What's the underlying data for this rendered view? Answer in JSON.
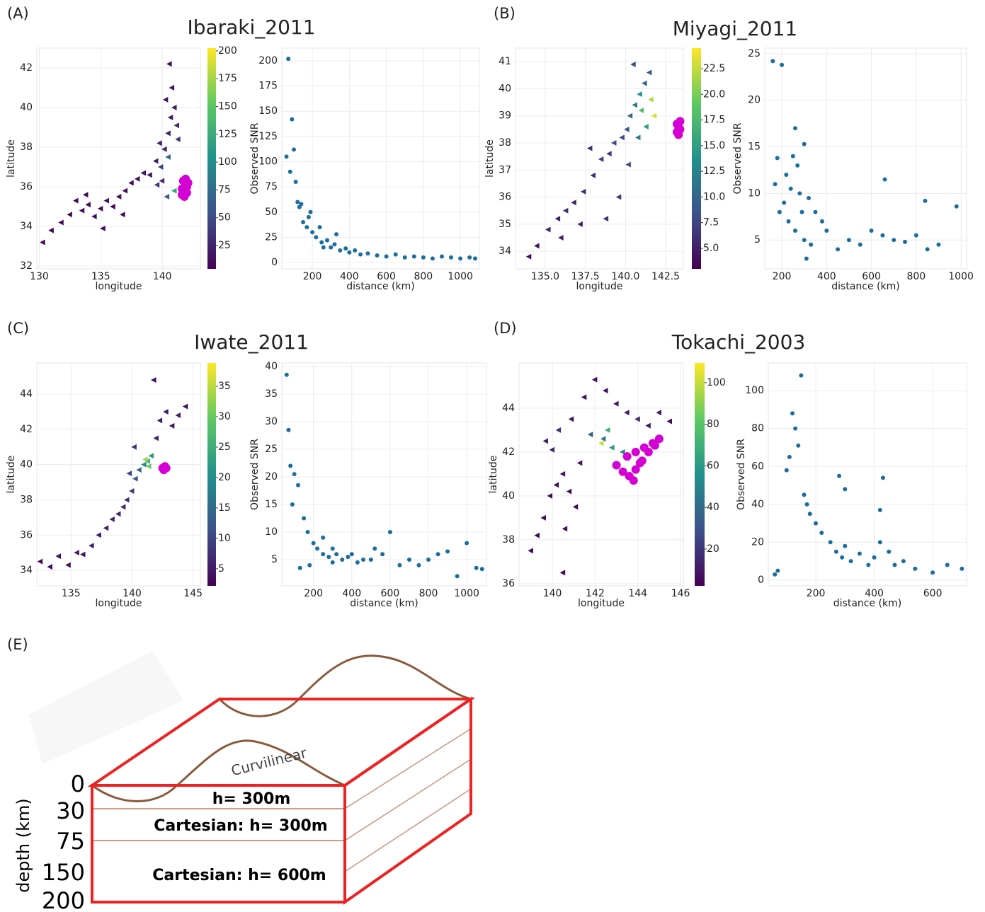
{
  "chart_data": [
    {
      "type": "map",
      "panel": "(A)",
      "title": "Ibaraki_2011",
      "xlabel": "longitude",
      "ylabel": "latitude",
      "grid": true,
      "xlim": [
        129.8,
        143.1
      ],
      "xticks": [
        130,
        135,
        140
      ],
      "ylim": [
        31.86,
        43
      ],
      "yticks": [
        32,
        34,
        36,
        38,
        40,
        42
      ],
      "stations": {
        "marker": "triangle",
        "x": [
          130.3,
          131,
          131.8,
          132.5,
          133,
          133.5,
          134,
          134.5,
          135,
          135.5,
          136,
          136.5,
          137,
          137.5,
          138,
          138.5,
          139,
          139.5,
          139.8,
          140,
          140.2,
          140.5,
          140.7,
          141,
          140.8,
          140.3,
          141.2,
          140.6,
          141,
          140.4,
          139.6,
          139.9,
          140.5,
          141.3,
          136.8,
          135.2,
          133.8
        ],
        "y": [
          33.2,
          33.8,
          34.2,
          34.6,
          35.3,
          34.8,
          35.1,
          34.5,
          34.9,
          35.3,
          35,
          35.5,
          35.8,
          36.2,
          36.4,
          36.7,
          36.6,
          37.3,
          38.2,
          36.3,
          37.9,
          38.7,
          39.5,
          40,
          41,
          40.4,
          39.1,
          42.2,
          35.8,
          35.5,
          36.1,
          37.0,
          37.5,
          38.4,
          34.6,
          33.9,
          35.6
        ],
        "snr": [
          8,
          7,
          9,
          10,
          8,
          9,
          10,
          12,
          9,
          11,
          10,
          12,
          14,
          13,
          15,
          16,
          18,
          20,
          22,
          30,
          25,
          24,
          20,
          18,
          12,
          15,
          28,
          10,
          120,
          60,
          40,
          45,
          70,
          35,
          12,
          11,
          9
        ]
      },
      "source": {
        "color": "#d400d4",
        "x": [
          141.6,
          141.8,
          142,
          142.1,
          141.7,
          141.9,
          142,
          141.8,
          141.6,
          141.9
        ],
        "y": [
          35.6,
          35.8,
          36,
          36.2,
          36.3,
          36.1,
          35.7,
          35.5,
          35.9,
          36.4
        ]
      },
      "colorbar": {
        "colormap": "viridis",
        "lim": [
          4,
          202.5
        ],
        "ticks": [
          25,
          50,
          75,
          100,
          125,
          150,
          175,
          200
        ]
      }
    },
    {
      "type": "scatter",
      "xlabel": "distance (km)",
      "ylabel": "Observed SNR",
      "grid": true,
      "color": "#1b6d9e",
      "xlim": [
        35,
        1103
      ],
      "xticks": [
        200,
        400,
        600,
        800,
        1000
      ],
      "ylim": [
        -6.3,
        212.6
      ],
      "yticks": [
        0,
        25,
        50,
        75,
        100,
        125,
        150,
        175,
        200
      ],
      "x": [
        70,
        90,
        100,
        60,
        80,
        110,
        120,
        130,
        150,
        170,
        180,
        200,
        220,
        250,
        280,
        300,
        320,
        350,
        380,
        400,
        430,
        460,
        500,
        550,
        600,
        650,
        700,
        750,
        800,
        850,
        900,
        950,
        1000,
        1050,
        1080,
        140,
        240,
        330,
        260,
        190
      ],
      "y": [
        202,
        142,
        112,
        105,
        90,
        80,
        60,
        55,
        40,
        35,
        45,
        30,
        25,
        20,
        22,
        15,
        18,
        12,
        14,
        10,
        12,
        8,
        9,
        7,
        6,
        8,
        5,
        6,
        5,
        4,
        6,
        5,
        4,
        5,
        4,
        58,
        35,
        28,
        15,
        50
      ]
    },
    {
      "type": "map",
      "panel": "(B)",
      "title": "Miyagi_2011",
      "xlabel": "longitude",
      "ylabel": "latitude",
      "grid": true,
      "xlim": [
        133.15,
        143.6
      ],
      "xticks": [
        {
          "value": 135,
          "label": "135.0"
        },
        {
          "value": 137.5,
          "label": "137.5"
        },
        {
          "value": 140,
          "label": "140.0"
        },
        {
          "value": 142.5,
          "label": "142.5"
        }
      ],
      "ylim": [
        33.35,
        41.5
      ],
      "yticks": [
        34,
        35,
        36,
        37,
        38,
        39,
        40,
        41
      ],
      "stations": {
        "marker": "triangle",
        "x": [
          134,
          134.5,
          135.2,
          135.8,
          136.3,
          136.8,
          137.4,
          138,
          138.5,
          139,
          139.3,
          139.8,
          140.1,
          140.3,
          140.6,
          140.9,
          141.2,
          141.5,
          140.5,
          141,
          141.3,
          140.8,
          141.6,
          141.8,
          140.2,
          139.6,
          138.8,
          137.2,
          136,
          137.8
        ],
        "y": [
          33.8,
          34.2,
          34.8,
          35.2,
          35.5,
          35.8,
          36.2,
          36.8,
          37.4,
          37.6,
          38,
          38.2,
          38.5,
          39,
          39.4,
          39.8,
          40.2,
          40.6,
          40.9,
          39.2,
          38.6,
          38.2,
          39.6,
          39.0,
          37.2,
          36,
          35.2,
          35,
          34.5,
          37.8
        ],
        "snr": [
          4,
          4,
          5,
          5,
          6,
          5,
          6,
          6,
          7,
          7,
          8,
          8,
          9,
          10,
          12,
          14,
          10,
          9,
          8,
          18,
          15,
          12,
          22,
          23,
          8,
          7,
          6,
          5,
          5,
          6
        ]
      },
      "source": {
        "color": "#d400d4",
        "x": [
          143.2,
          143.3,
          143.4,
          143.3,
          143.2,
          143.4
        ],
        "y": [
          38.4,
          38.6,
          38.8,
          38.3,
          38.7,
          38.5
        ]
      },
      "colorbar": {
        "colormap": "viridis",
        "lim": [
          3.0,
          24.5
        ],
        "ticks": [
          {
            "value": 5,
            "label": "5.0"
          },
          {
            "value": 7.5,
            "label": "7.5"
          },
          {
            "value": 10,
            "label": "10.0"
          },
          {
            "value": 12.5,
            "label": "12.5"
          },
          {
            "value": 15,
            "label": "15.0"
          },
          {
            "value": 17.5,
            "label": "17.5"
          },
          {
            "value": 20,
            "label": "20.0"
          },
          {
            "value": 22.5,
            "label": "22.5"
          }
        ]
      }
    },
    {
      "type": "scatter",
      "xlabel": "distance (km)",
      "ylabel": "Observed SNR",
      "grid": true,
      "color": "#1b6d9e",
      "xlim": [
        124,
        1025
      ],
      "xticks": [
        200,
        400,
        600,
        800,
        1000
      ],
      "ylim": [
        1.9,
        25.6
      ],
      "yticks": [
        5,
        10,
        15,
        20,
        25
      ],
      "x": [
        160,
        200,
        260,
        300,
        180,
        220,
        240,
        280,
        320,
        350,
        380,
        400,
        250,
        270,
        210,
        190,
        230,
        260,
        300,
        330,
        450,
        500,
        550,
        600,
        650,
        700,
        750,
        800,
        850,
        900,
        980,
        660,
        840,
        170,
        290,
        310
      ],
      "y": [
        24.2,
        23.8,
        17,
        15.3,
        13.8,
        12,
        10.5,
        10,
        9.5,
        8,
        7,
        6,
        14,
        13,
        9,
        8,
        7,
        6,
        5,
        4.5,
        4,
        5,
        4.5,
        6,
        5.5,
        5,
        4.8,
        5.5,
        4,
        4.5,
        8.6,
        11.5,
        9.2,
        11,
        8,
        3
      ]
    },
    {
      "type": "map",
      "panel": "(C)",
      "title": "Iwate_2011",
      "xlabel": "longitude",
      "ylabel": "latitude",
      "grid": true,
      "xlim": [
        132.2,
        145.6
      ],
      "xticks": [
        135,
        140,
        145
      ],
      "ylim": [
        33.12,
        45.77
      ],
      "yticks": [
        34,
        36,
        38,
        40,
        42,
        44
      ],
      "stations": {
        "marker": "triangle",
        "x": [
          132.5,
          133.3,
          134,
          134.8,
          135.5,
          136,
          136.7,
          137.3,
          137.9,
          138.4,
          138.9,
          139.3,
          139.6,
          140,
          140.3,
          140.6,
          141,
          141.3,
          141.6,
          142,
          142.3,
          142.8,
          143.3,
          143.8,
          144.4,
          141.8,
          140.2,
          139.8,
          141.4,
          141.1
        ],
        "y": [
          34.5,
          34.2,
          34.8,
          34.3,
          35,
          34.9,
          35.4,
          36,
          36.4,
          36.9,
          37.2,
          37.6,
          38,
          38.5,
          39.2,
          39.7,
          40,
          40.2,
          40.5,
          41.5,
          42.5,
          43,
          42.2,
          42.8,
          43.3,
          44.8,
          41,
          39.5,
          39.9,
          40.3
        ],
        "snr": [
          3,
          3,
          4,
          4,
          5,
          4,
          5,
          5,
          6,
          6,
          7,
          7,
          8,
          9,
          12,
          15,
          20,
          25,
          22,
          6,
          5,
          5,
          4,
          5,
          4,
          4,
          8,
          10,
          30,
          34
        ]
      },
      "source": {
        "color": "#d400d4",
        "x": [
          142.5,
          142.7,
          142.8,
          142.6
        ],
        "y": [
          39.8,
          39.9,
          39.8,
          39.7
        ]
      },
      "colorbar": {
        "colormap": "viridis",
        "lim": [
          2.2,
          38.84
        ],
        "ticks": [
          5,
          10,
          15,
          20,
          25,
          30,
          35
        ]
      }
    },
    {
      "type": "scatter",
      "xlabel": "distance (km)",
      "ylabel": "Observed SNR",
      "grid": true,
      "color": "#1b6d9e",
      "xlim": [
        35,
        1103
      ],
      "xticks": [
        200,
        400,
        600,
        800,
        1000
      ],
      "ylim": [
        0.26,
        40.64
      ],
      "yticks": [
        5,
        10,
        15,
        20,
        25,
        30,
        35,
        40
      ],
      "x": [
        60,
        70,
        80,
        100,
        90,
        120,
        150,
        170,
        200,
        220,
        250,
        280,
        300,
        320,
        350,
        380,
        400,
        430,
        460,
        500,
        520,
        560,
        600,
        650,
        700,
        750,
        800,
        850,
        900,
        950,
        1000,
        1050,
        1080,
        130,
        180,
        250,
        300
      ],
      "y": [
        38.5,
        28.5,
        22,
        20.5,
        15,
        18.5,
        12.5,
        10,
        8,
        7,
        6,
        5.5,
        7,
        6,
        5,
        5.5,
        6,
        4.5,
        5,
        5,
        7,
        6,
        10,
        4,
        5,
        4,
        5,
        6,
        6.5,
        2,
        8,
        3.5,
        3.3,
        3.5,
        4,
        9,
        4.5
      ]
    },
    {
      "type": "map",
      "panel": "(D)",
      "title": "Tokachi_2003",
      "xlabel": "longitude",
      "ylabel": "latitude",
      "grid": true,
      "xlim": [
        138.44,
        146.13
      ],
      "xticks": [
        140,
        142,
        144,
        146
      ],
      "ylim": [
        35.9,
        46.06
      ],
      "yticks": [
        36,
        38,
        40,
        42,
        44
      ],
      "stations": {
        "marker": "triangle",
        "x": [
          139,
          139.3,
          139.6,
          139.9,
          140.2,
          140.5,
          140.8,
          141.1,
          141.3,
          140.6,
          140,
          139.7,
          140.3,
          140.9,
          141.5,
          142,
          142.5,
          143,
          143.5,
          144,
          144.5,
          145,
          145.5,
          141.8,
          142.3,
          142.8,
          143.3,
          142.6,
          142.4,
          140.5
        ],
        "y": [
          37.5,
          38.2,
          39,
          40,
          40.5,
          41,
          40.2,
          39.5,
          41.5,
          38.5,
          42.1,
          42.5,
          43,
          43.5,
          44.5,
          45.3,
          44.8,
          44.2,
          43.8,
          43.5,
          43.2,
          43.8,
          43.4,
          42.8,
          42.4,
          42.2,
          42.0,
          43.0,
          42.6,
          36.5
        ],
        "snr": [
          5,
          5,
          6,
          6,
          7,
          8,
          7,
          6,
          8,
          6,
          15,
          12,
          20,
          10,
          8,
          6,
          8,
          10,
          12,
          15,
          10,
          8,
          6,
          35,
          100,
          60,
          50,
          70,
          45,
          5
        ]
      },
      "source": {
        "color": "#d400d4",
        "x": [
          143,
          143.3,
          143.6,
          143.9,
          144.2,
          144.5,
          144.8,
          145,
          143.5,
          143.9,
          144.3,
          144.7,
          143.8,
          144.1
        ],
        "y": [
          41.4,
          41.1,
          40.9,
          41.2,
          41.6,
          42,
          42.3,
          42.6,
          41.8,
          42,
          42.2,
          42.4,
          40.7,
          41.5
        ]
      },
      "colorbar": {
        "colormap": "viridis",
        "lim": [
          2.3,
          109.5
        ],
        "ticks": [
          20,
          40,
          60,
          80,
          100
        ]
      }
    },
    {
      "type": "scatter",
      "xlabel": "distance (km)",
      "ylabel": "Observed SNR",
      "grid": true,
      "color": "#1b6d9e",
      "xlim": [
        37.6,
        716
      ],
      "xticks": [
        200,
        400,
        600
      ],
      "ylim": [
        -3,
        114.6
      ],
      "yticks": [
        0,
        20,
        40,
        60,
        80,
        100
      ],
      "x": [
        60,
        70,
        100,
        110,
        120,
        130,
        140,
        150,
        160,
        170,
        180,
        200,
        220,
        250,
        270,
        290,
        300,
        320,
        350,
        380,
        400,
        420,
        430,
        450,
        470,
        500,
        540,
        600,
        650,
        700,
        280,
        300,
        420
      ],
      "y": [
        3,
        5,
        58,
        65,
        88,
        80,
        71,
        108,
        45,
        40,
        35,
        30,
        25,
        20,
        15,
        12,
        18,
        10,
        14,
        8,
        12,
        20,
        54,
        15,
        8,
        10,
        6,
        4,
        8,
        6,
        55,
        48,
        37
      ]
    }
  ],
  "diagram": {
    "label": "(E)",
    "curvilinear": "Curvilinear",
    "layers": [
      "h= 300m",
      "Cartesian: h= 300m",
      "Cartesian: h= 600m"
    ],
    "depth_label": "depth (km)",
    "depth_ticks": [
      0,
      30,
      75,
      150,
      200
    ]
  }
}
